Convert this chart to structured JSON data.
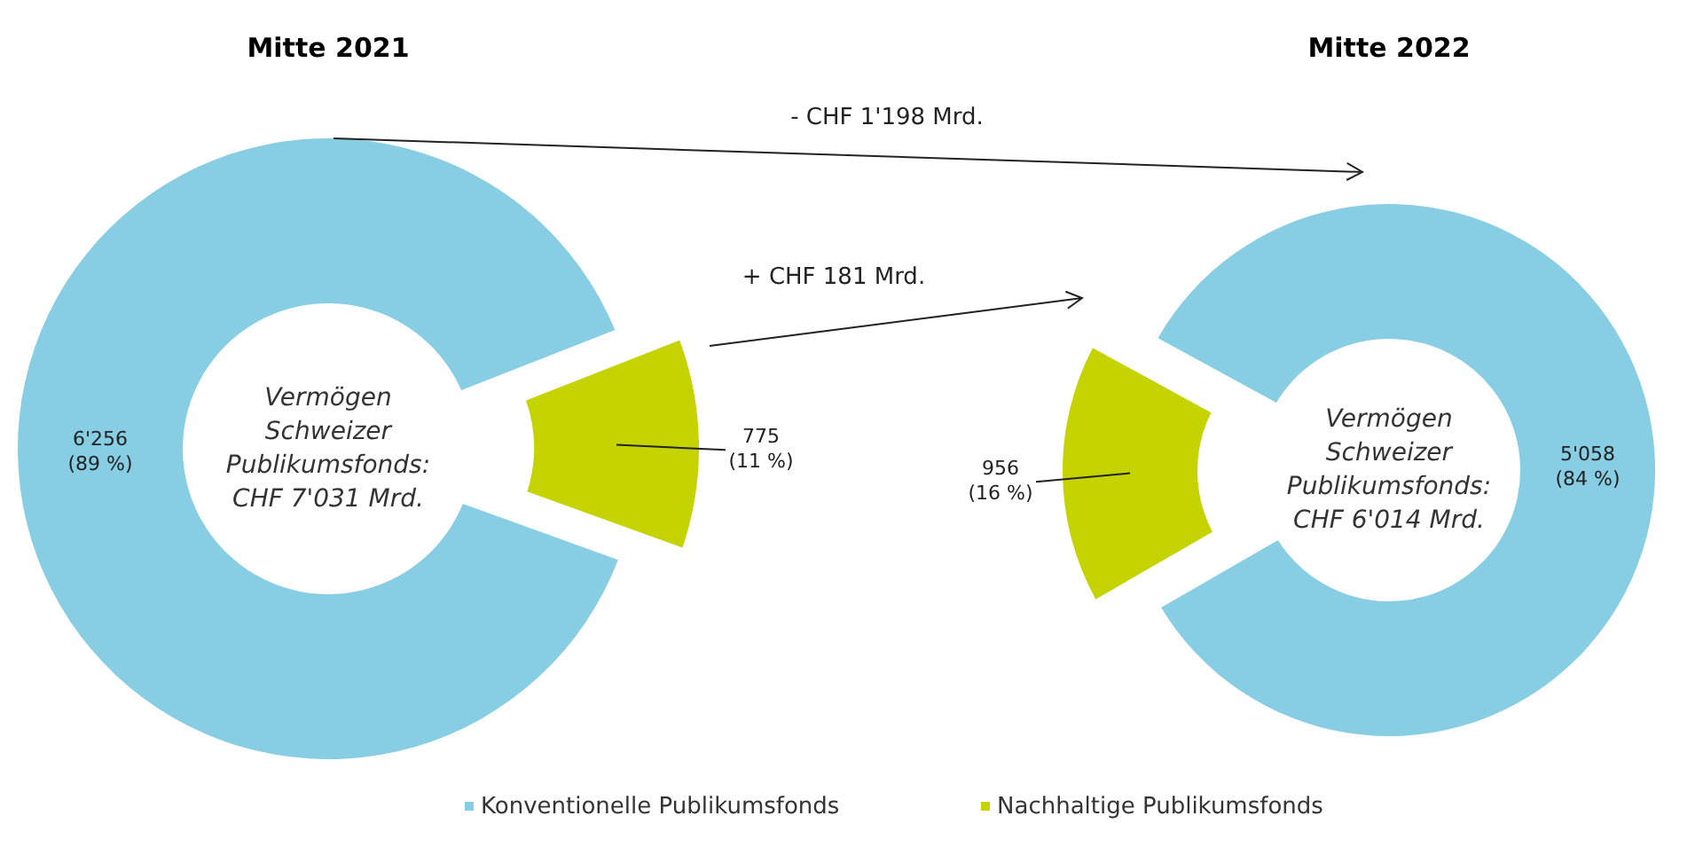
{
  "chart_data": [
    {
      "type": "donut",
      "title": "Mitte 2021",
      "categories": [
        "Konventionelle Publikumsfonds",
        "Nachhaltige Publikumsfonds"
      ],
      "values": [
        6256,
        775
      ],
      "colors": [
        "#87cde3",
        "#c5d300"
      ],
      "value_labels": [
        "6'256\n(89 %)",
        "775\n(11 %)"
      ],
      "legend": "bottom",
      "annotations": [
        "Vermögen\nSchweizer\nPublikumsfonds:\nCHF 7'031 Mrd.",
        "- CHF 1'198 Mrd.",
        "+ CHF 181 Mrd."
      ]
    },
    {
      "type": "donut",
      "title": "Mitte 2022",
      "categories": [
        null,
        null
      ],
      "values": [
        5058,
        956
      ],
      "colors": [
        "#87cde3",
        "#c5d300"
      ],
      "value_labels": [
        "5'058\n(84 %)",
        "956\n(16 %)"
      ],
      "annotations": [
        "Vermögen\nSchweizer\nPublikumsfonds:\nCHF 6'014 Mrd."
      ]
    }
  ]
}
